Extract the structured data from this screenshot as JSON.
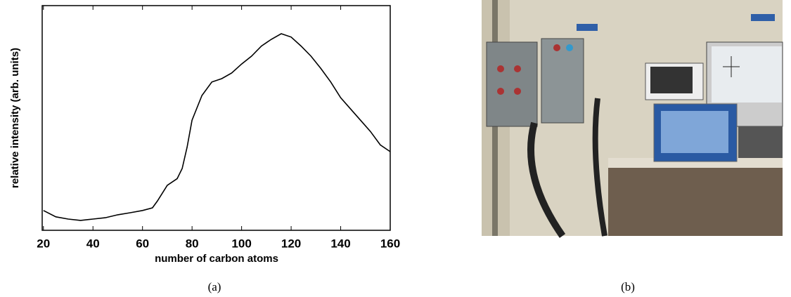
{
  "chart_data": {
    "type": "line",
    "xlabel": "number of carbon atoms",
    "ylabel": "relative intensity (arb. units)",
    "x": [
      20,
      25,
      30,
      35,
      40,
      45,
      50,
      55,
      60,
      64,
      66,
      70,
      74,
      76,
      78,
      80,
      84,
      88,
      92,
      96,
      100,
      104,
      108,
      112,
      116,
      120,
      124,
      128,
      132,
      136,
      140,
      144,
      148,
      152,
      156,
      160
    ],
    "y": [
      8.8,
      6,
      5,
      4.4,
      5,
      5.6,
      6.9,
      7.8,
      8.8,
      10,
      13,
      20,
      23,
      27.5,
      37,
      49,
      60,
      66,
      67.5,
      70,
      74,
      77.5,
      82,
      85,
      87.5,
      86,
      82,
      77.5,
      72,
      66,
      59,
      54,
      49,
      44,
      38,
      35
    ],
    "color": "#000000",
    "xlim": [
      19.5,
      160
    ],
    "xticks": [
      20,
      40,
      60,
      80,
      100,
      120,
      140,
      160
    ],
    "ylim": [
      0,
      100
    ]
  },
  "captions": [
    "(a)",
    "(b)"
  ]
}
